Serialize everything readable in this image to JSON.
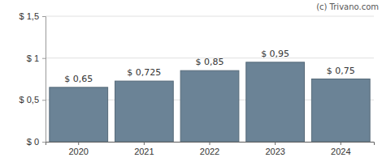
{
  "chart_data": {
    "type": "bar",
    "annotations": [
      "(c) Trivano.com"
    ],
    "categories": [
      "2020",
      "2021",
      "2022",
      "2023",
      "2024"
    ],
    "values": [
      0.65,
      0.725,
      0.85,
      0.95,
      0.75
    ],
    "value_labels": [
      "$ 0,65",
      "$ 0,725",
      "$ 0,85",
      "$ 0,95",
      "$ 0,75"
    ],
    "color": "#6b8396",
    "ylim": [
      0,
      1.5
    ],
    "yticks": [
      {
        "value": 0,
        "label": "$ 0"
      },
      {
        "value": 0.5,
        "label": "$ 0,5"
      },
      {
        "value": 1,
        "label": "$ 1"
      },
      {
        "value": 1.5,
        "label": "$ 1,5"
      }
    ],
    "grid": true,
    "data_labels": true
  }
}
